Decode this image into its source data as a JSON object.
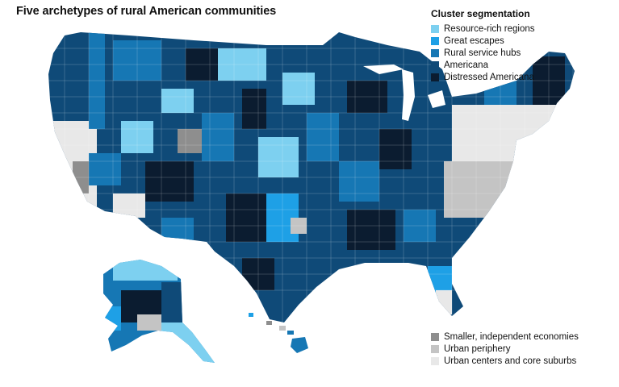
{
  "title": "Five archetypes of rural American communities",
  "legend": {
    "heading": "Cluster segmentation",
    "clusters": [
      {
        "label": "Resource-rich regions",
        "color": "#7dd0f0"
      },
      {
        "label": "Great escapes",
        "color": "#1ea0e6"
      },
      {
        "label": "Rural service hubs",
        "color": "#1677b4"
      },
      {
        "label": "Americana",
        "color": "#0f4a78"
      },
      {
        "label": "Distressed Americana",
        "color": "#0b1c30"
      }
    ],
    "other": [
      {
        "label": "Smaller, independent economies",
        "color": "#8e8e8e"
      },
      {
        "label": "Urban periphery",
        "color": "#c4c4c4"
      },
      {
        "label": "Urban centers and core suburbs",
        "color": "#e8e8e8"
      }
    ]
  }
}
